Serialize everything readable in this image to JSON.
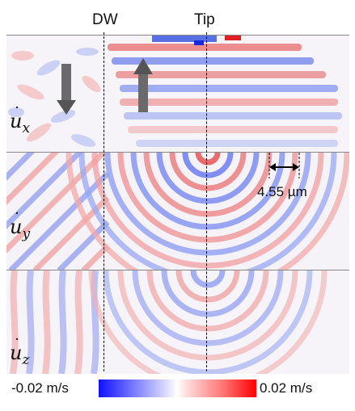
{
  "labels": {
    "domain_wall": "DW",
    "tip": "Tip"
  },
  "panels": [
    {
      "id": "ux",
      "symbol": "u",
      "subscript": "x"
    },
    {
      "id": "uy",
      "symbol": "u",
      "subscript": "y"
    },
    {
      "id": "uz",
      "symbol": "u",
      "subscript": "z"
    }
  ],
  "scale_bar": {
    "text": "4.55 µm"
  },
  "colorbar": {
    "min_label": "-0.02 m/s",
    "max_label": "0.02 m/s",
    "min_color": "#1010ff",
    "max_color": "#ff0000"
  },
  "arrows": {
    "left_domain": "down-arrow",
    "right_domain": "up-arrow"
  }
}
